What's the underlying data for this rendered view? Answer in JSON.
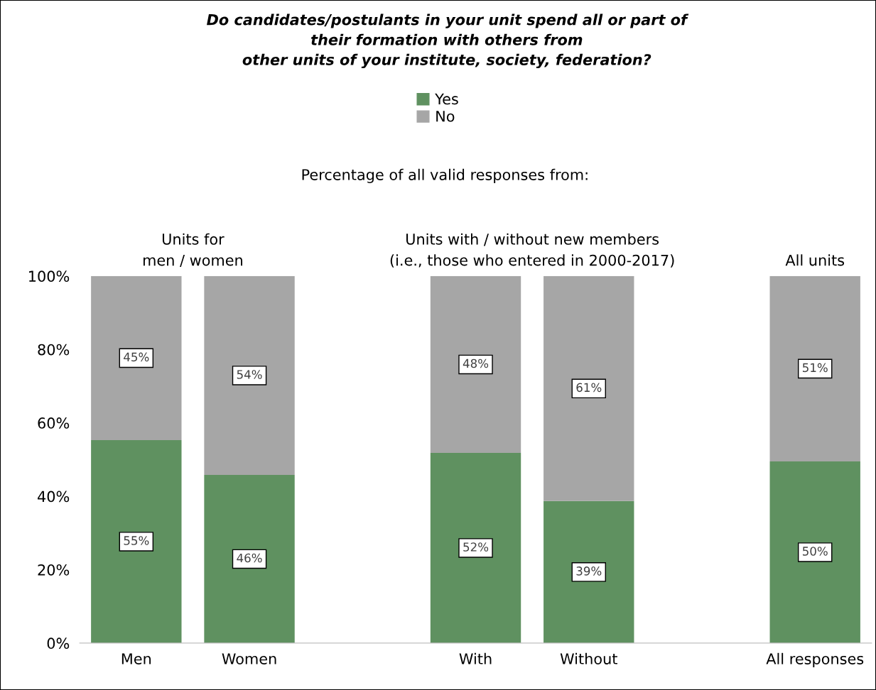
{
  "chart_data": {
    "type": "bar",
    "stacked": true,
    "title": "Do candidates/postulants in your unit spend all or part of\ntheir formation with others from\nother units of your institute, society, federation?",
    "subtitle": "Percentage of all valid responses from:",
    "categories": [
      "Men",
      "Women",
      null,
      "With",
      "Without",
      null,
      "All responses"
    ],
    "series": [
      {
        "name": "Yes",
        "color": "#5f9160",
        "values": [
          55.3,
          45.8,
          null,
          51.8,
          38.7,
          null,
          49.5
        ],
        "value_labels": [
          "55%",
          "46%",
          null,
          "52%",
          "39%",
          null,
          "50%"
        ]
      },
      {
        "name": "No",
        "color": "#a6a6a6",
        "values": [
          44.7,
          54.2,
          null,
          48.2,
          61.3,
          null,
          50.5
        ],
        "value_labels": [
          "45%",
          "54%",
          null,
          "48%",
          "61%",
          null,
          "51%"
        ]
      }
    ],
    "annotations": [
      "Units for\nmen / women",
      "Units with / without new members\n(i.e., those who entered in 2000-2017)",
      "All units"
    ],
    "ylim": [
      0,
      100
    ],
    "yticks": [
      {
        "value": 0,
        "label": "0%"
      },
      {
        "value": 20,
        "label": "20%"
      },
      {
        "value": 40,
        "label": "40%"
      },
      {
        "value": 60,
        "label": "60%"
      },
      {
        "value": 80,
        "label": "80%"
      },
      {
        "value": 100,
        "label": "100%"
      }
    ],
    "grid": false,
    "legend": "top"
  }
}
